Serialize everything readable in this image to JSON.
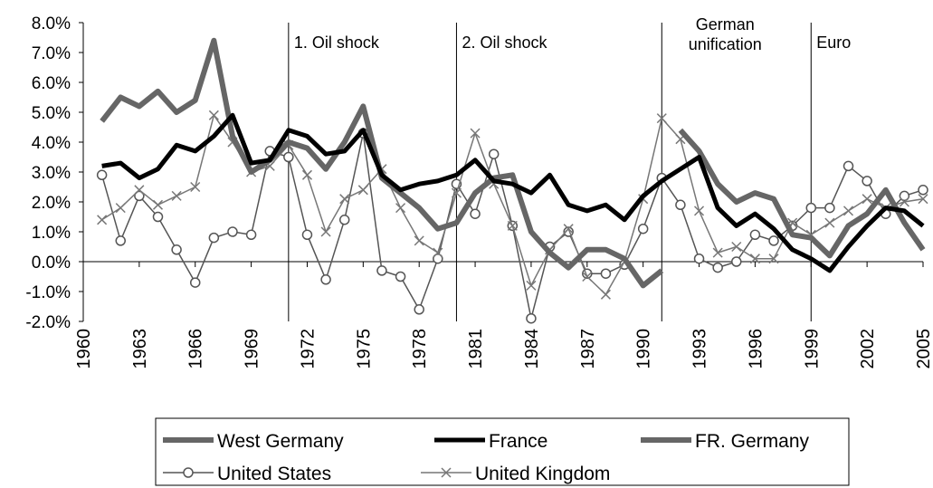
{
  "chart_data": {
    "type": "line",
    "x": [
      1961,
      1962,
      1963,
      1964,
      1965,
      1966,
      1967,
      1968,
      1969,
      1970,
      1971,
      1972,
      1973,
      1974,
      1975,
      1976,
      1977,
      1978,
      1979,
      1980,
      1981,
      1982,
      1983,
      1984,
      1985,
      1986,
      1987,
      1988,
      1989,
      1990,
      1991,
      1992,
      1993,
      1994,
      1995,
      1996,
      1997,
      1998,
      1999,
      2000,
      2001,
      2002,
      2003,
      2004,
      2005
    ],
    "xlim": [
      1960,
      2005
    ],
    "xticks": [
      1960,
      1963,
      1966,
      1969,
      1972,
      1975,
      1978,
      1981,
      1984,
      1987,
      1990,
      1993,
      1996,
      1999,
      2002,
      2005
    ],
    "ylim": [
      -2,
      8
    ],
    "yticks": [
      {
        "value": -2,
        "label": "-2.0%"
      },
      {
        "value": -1,
        "label": "-1.0%"
      },
      {
        "value": 0,
        "label": "0.0%"
      },
      {
        "value": 1,
        "label": "1.0%"
      },
      {
        "value": 2,
        "label": "2.0%"
      },
      {
        "value": 3,
        "label": "3.0%"
      },
      {
        "value": 4,
        "label": "4.0%"
      },
      {
        "value": 5,
        "label": "5.0%"
      },
      {
        "value": 6,
        "label": "6.0%"
      },
      {
        "value": 7,
        "label": "7.0%"
      },
      {
        "value": 8,
        "label": "8.0%"
      }
    ],
    "grid": false,
    "periods": [
      {
        "label": "1. Oil shock",
        "start": 1971
      },
      {
        "label": "2. Oil shock",
        "start": 1980
      },
      {
        "label": "German unification",
        "start": 1991
      },
      {
        "label": "Euro",
        "start": 1999
      }
    ],
    "legend": "bottom",
    "series": [
      {
        "name": "West Germany",
        "color": "#666666",
        "line_width": 6,
        "marker": "none",
        "values": [
          4.7,
          5.5,
          5.2,
          5.7,
          5.0,
          5.4,
          7.4,
          4.2,
          3.0,
          3.4,
          4.0,
          3.8,
          3.1,
          4.0,
          5.2,
          2.8,
          2.3,
          1.8,
          1.1,
          1.3,
          2.3,
          2.8,
          2.9,
          1.0,
          0.3,
          -0.2,
          0.4,
          0.4,
          0.1,
          -0.8,
          -0.3,
          null,
          null,
          null,
          null,
          null,
          null,
          null,
          null,
          null,
          null,
          null,
          null,
          null,
          null
        ]
      },
      {
        "name": "France",
        "color": "#000000",
        "line_width": 5,
        "marker": "none",
        "values": [
          3.2,
          3.3,
          2.8,
          3.1,
          3.9,
          3.7,
          4.2,
          4.9,
          3.3,
          3.4,
          4.4,
          4.2,
          3.6,
          3.7,
          4.4,
          2.9,
          2.4,
          2.6,
          2.7,
          2.9,
          3.4,
          2.7,
          2.6,
          2.3,
          2.9,
          1.9,
          1.7,
          1.9,
          1.4,
          2.2,
          2.7,
          3.1,
          3.5,
          1.8,
          1.2,
          1.6,
          1.1,
          0.4,
          0.1,
          -0.3,
          0.5,
          1.2,
          1.8,
          1.7,
          1.2
        ]
      },
      {
        "name": "FR. Germany",
        "color": "#666666",
        "line_width": 6,
        "marker": "none",
        "values": [
          null,
          null,
          null,
          null,
          null,
          null,
          null,
          null,
          null,
          null,
          null,
          null,
          null,
          null,
          null,
          null,
          null,
          null,
          null,
          null,
          null,
          null,
          null,
          null,
          null,
          null,
          null,
          null,
          null,
          null,
          null,
          4.4,
          3.7,
          2.6,
          2.0,
          2.3,
          2.1,
          0.9,
          0.8,
          0.2,
          1.2,
          1.6,
          2.4,
          1.3,
          0.4
        ]
      },
      {
        "name": "United States",
        "color": "#555555",
        "line_width": 1.5,
        "marker": "circle",
        "values": [
          2.9,
          0.7,
          2.2,
          1.5,
          0.4,
          -0.7,
          0.8,
          1.0,
          0.9,
          3.7,
          3.5,
          0.9,
          -0.6,
          1.4,
          4.3,
          -0.3,
          -0.5,
          -1.6,
          0.1,
          2.6,
          1.6,
          3.6,
          1.2,
          -1.9,
          0.5,
          1.0,
          -0.4,
          -0.4,
          -0.1,
          1.1,
          2.8,
          1.9,
          0.1,
          -0.2,
          0.0,
          0.9,
          0.7,
          1.2,
          1.8,
          1.8,
          3.2,
          2.7,
          1.6,
          2.2,
          2.4
        ]
      },
      {
        "name": "United Kingdom",
        "color": "#777777",
        "line_width": 1.5,
        "marker": "x",
        "values": [
          1.4,
          1.8,
          2.4,
          1.9,
          2.2,
          2.5,
          4.9,
          4.0,
          3.0,
          3.2,
          3.9,
          2.9,
          1.0,
          2.1,
          2.4,
          3.1,
          1.8,
          0.7,
          0.3,
          2.3,
          4.3,
          2.6,
          1.2,
          -0.8,
          0.4,
          1.1,
          -0.5,
          -1.1,
          0.0,
          2.1,
          4.8,
          4.1,
          1.7,
          0.3,
          0.5,
          0.1,
          0.1,
          1.3,
          0.9,
          1.3,
          1.7,
          2.1,
          1.8,
          2.0,
          2.1
        ]
      }
    ]
  }
}
